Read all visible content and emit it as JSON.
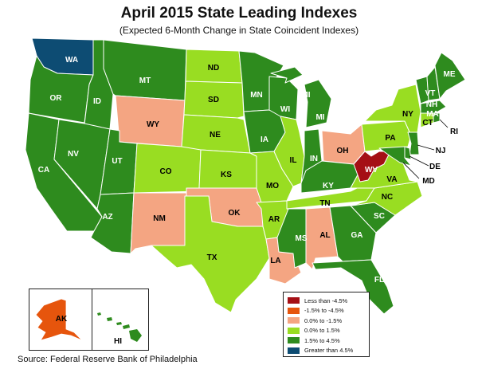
{
  "title": "April 2015 State Leading Indexes",
  "subtitle": "(Expected 6-Month Change in State Coincident Indexes)",
  "source": "Source: Federal Reserve Bank of Philadelphia",
  "colors": {
    "lt_neg45": "#a50f15",
    "neg15_neg45": "#e6550d",
    "zero_neg15": "#f4a582",
    "zero_15": "#99dd22",
    "p15_45": "#2e8b1e",
    "gt45": "#0d4c73"
  },
  "legend": [
    {
      "label": "Less than -4.5%",
      "color": "#a50f15"
    },
    {
      "label": "-1.5% to -4.5%",
      "color": "#e6550d"
    },
    {
      "label": "0.0% to -1.5%",
      "color": "#f4a582"
    },
    {
      "label": "0.0% to  1.5%",
      "color": "#99dd22"
    },
    {
      "label": "1.5% to  4.5%",
      "color": "#2e8b1e"
    },
    {
      "label": "Greater than 4.5%",
      "color": "#0d4c73"
    }
  ],
  "states": {
    "WA": {
      "label": "WA",
      "category": "gt45"
    },
    "OR": {
      "label": "OR",
      "category": "p15_45"
    },
    "CA": {
      "label": "CA",
      "category": "p15_45"
    },
    "ID": {
      "label": "ID",
      "category": "p15_45"
    },
    "NV": {
      "label": "NV",
      "category": "p15_45"
    },
    "MT": {
      "label": "MT",
      "category": "p15_45"
    },
    "WY": {
      "label": "WY",
      "category": "zero_neg15"
    },
    "UT": {
      "label": "UT",
      "category": "p15_45"
    },
    "AZ": {
      "label": "AZ",
      "category": "p15_45"
    },
    "CO": {
      "label": "CO",
      "category": "zero_15"
    },
    "NM": {
      "label": "NM",
      "category": "zero_neg15"
    },
    "ND": {
      "label": "ND",
      "category": "zero_15"
    },
    "SD": {
      "label": "SD",
      "category": "zero_15"
    },
    "NE": {
      "label": "NE",
      "category": "zero_15"
    },
    "KS": {
      "label": "KS",
      "category": "zero_15"
    },
    "OK": {
      "label": "OK",
      "category": "zero_neg15"
    },
    "TX": {
      "label": "TX",
      "category": "zero_15"
    },
    "MN": {
      "label": "MN",
      "category": "p15_45"
    },
    "IA": {
      "label": "IA",
      "category": "p15_45"
    },
    "MO": {
      "label": "MO",
      "category": "zero_15"
    },
    "AR": {
      "label": "AR",
      "category": "zero_15"
    },
    "LA": {
      "label": "LA",
      "category": "zero_neg15"
    },
    "WI": {
      "label": "WI",
      "category": "p15_45"
    },
    "IL": {
      "label": "IL",
      "category": "zero_15"
    },
    "MI": {
      "label": "MI",
      "category": "p15_45"
    },
    "IN": {
      "label": "IN",
      "category": "p15_45"
    },
    "OH": {
      "label": "OH",
      "category": "zero_neg15"
    },
    "KY": {
      "label": "KY",
      "category": "p15_45"
    },
    "TN": {
      "label": "TN",
      "category": "zero_15"
    },
    "MS": {
      "label": "MS",
      "category": "p15_45"
    },
    "AL": {
      "label": "AL",
      "category": "zero_neg15"
    },
    "GA": {
      "label": "GA",
      "category": "p15_45"
    },
    "FL": {
      "label": "FL",
      "category": "p15_45"
    },
    "SC": {
      "label": "SC",
      "category": "p15_45"
    },
    "NC": {
      "label": "NC",
      "category": "zero_15"
    },
    "VA": {
      "label": "VA",
      "category": "zero_15"
    },
    "WV": {
      "label": "WV",
      "category": "lt_neg45"
    },
    "PA": {
      "label": "PA",
      "category": "zero_15"
    },
    "NY": {
      "label": "NY",
      "category": "zero_15"
    },
    "VT": {
      "label": "VT",
      "category": "p15_45"
    },
    "NH": {
      "label": "NH",
      "category": "p15_45"
    },
    "ME": {
      "label": "ME",
      "category": "p15_45"
    },
    "MA": {
      "label": "MA",
      "category": "p15_45"
    },
    "CT": {
      "label": "CT",
      "category": "zero_15"
    },
    "RI": {
      "label": "RI",
      "category": "p15_45"
    },
    "NJ": {
      "label": "NJ",
      "category": "p15_45"
    },
    "DE": {
      "label": "DE",
      "category": "p15_45"
    },
    "MD": {
      "label": "MD",
      "category": "p15_45"
    },
    "AK": {
      "label": "AK",
      "category": "neg15_neg45"
    },
    "HI": {
      "label": "HI",
      "category": "p15_45"
    }
  }
}
